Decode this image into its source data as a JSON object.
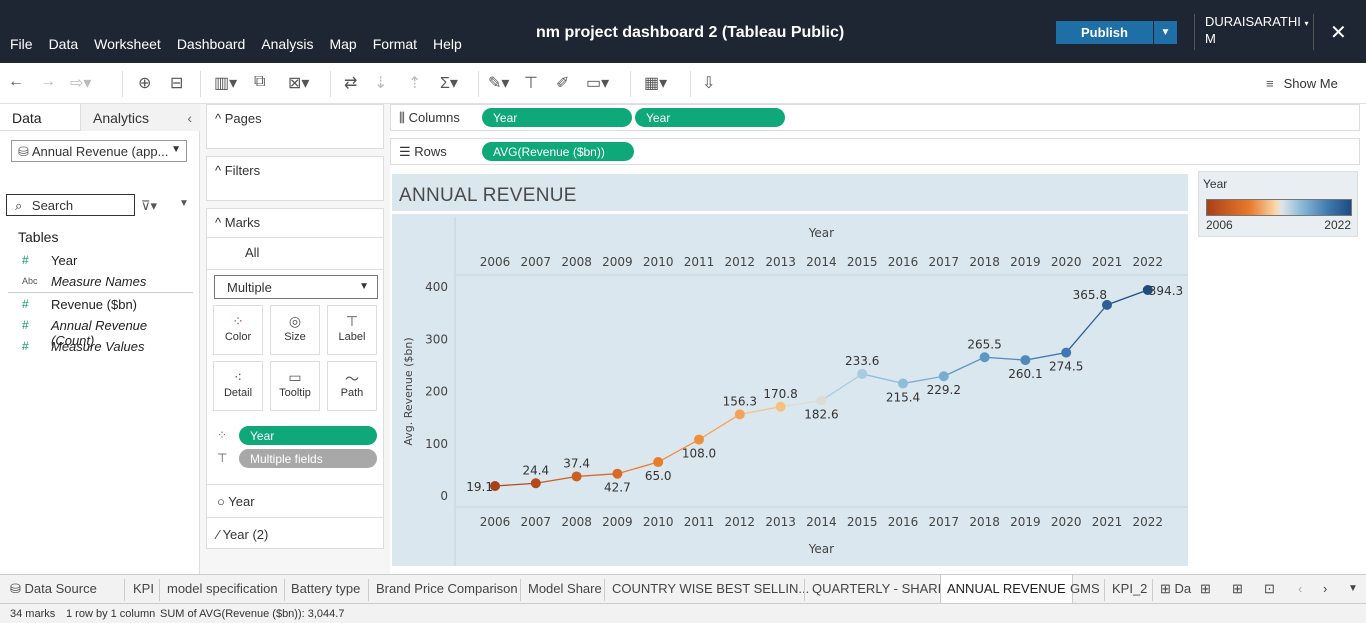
{
  "menu": [
    "File",
    "Data",
    "Worksheet",
    "Dashboard",
    "Analysis",
    "Map",
    "Format",
    "Help"
  ],
  "app_title": "nm project dashboard 2 (Tableau Public)",
  "publish_label": "Publish",
  "user_name_line1": "DURAISARATHI",
  "user_name_line2": "M",
  "show_me": "Show Me",
  "data_pane": {
    "tab_data": "Data",
    "tab_analytics": "Analytics",
    "data_source": "Annual Revenue (app...",
    "search_placeholder": "Search",
    "tables_header": "Tables",
    "fields": [
      {
        "icon": "#",
        "name": "Year",
        "italic": false
      },
      {
        "icon": "Abc",
        "name": "Measure Names",
        "italic": true
      },
      {
        "icon": "#",
        "name": "Revenue ($bn)",
        "italic": false
      },
      {
        "icon": "#",
        "name": "Annual Revenue (Count)",
        "italic": true
      },
      {
        "icon": "#",
        "name": "Measure Values",
        "italic": true
      }
    ]
  },
  "shelves": {
    "pages": "Pages",
    "filters": "Filters",
    "marks": "Marks",
    "marks_all": "All",
    "mark_type": "Multiple",
    "mark_buttons": [
      "Color",
      "Size",
      "Label",
      "Detail",
      "Tooltip",
      "Path"
    ],
    "marks_pills": [
      "Year",
      "Multiple fields"
    ],
    "marks_sub_cards": [
      "Year",
      "Year (2)"
    ],
    "columns_label": "Columns",
    "rows_label": "Rows",
    "columns_pills": [
      "Year",
      "Year"
    ],
    "rows_pills": [
      "AVG(Revenue ($bn))"
    ]
  },
  "legend": {
    "title": "Year",
    "min": "2006",
    "max": "2022"
  },
  "sheet_tabs": {
    "data_source": "Data Source",
    "tabs": [
      "KPI",
      "model specification",
      "Battery type",
      "Brand Price Comparison",
      "Model Share",
      "COUNTRY WISE BEST SELLIN...",
      "QUARTERLY - SHARE",
      "ANNUAL REVENUE",
      "GMS",
      "KPI_2",
      "Da"
    ],
    "active": "ANNUAL REVENUE"
  },
  "status": {
    "marks": "34 marks",
    "rows_cols": "1 row by 1 column",
    "sum": "SUM of AVG(Revenue ($bn)): 3,044.7"
  },
  "chart_data": {
    "type": "line",
    "title": "ANNUAL REVENUE",
    "xlabel": "Year",
    "ylabel": "Avg. Revenue ($bn)",
    "ylim": [
      0,
      400
    ],
    "yticks": [
      0,
      100,
      200,
      300,
      400
    ],
    "categories": [
      "2006",
      "2007",
      "2008",
      "2009",
      "2010",
      "2011",
      "2012",
      "2013",
      "2014",
      "2015",
      "2016",
      "2017",
      "2018",
      "2019",
      "2020",
      "2021",
      "2022"
    ],
    "values": [
      19.1,
      24.4,
      37.4,
      42.7,
      65.0,
      108.0,
      156.3,
      170.8,
      182.6,
      233.6,
      215.4,
      229.2,
      265.5,
      260.1,
      274.5,
      365.8,
      394.3
    ],
    "labels": [
      "19.1",
      "24.4",
      "37.4",
      "42.7",
      "65.0",
      "108.0",
      "156.3",
      "170.8",
      "182.6",
      "233.6",
      "215.4",
      "229.2",
      "265.5",
      "260.1",
      "274.5",
      "365.8",
      "394.3"
    ],
    "colors": [
      "#a8401a",
      "#b5481d",
      "#c95f22",
      "#d96a26",
      "#e97b2c",
      "#ef8f3e",
      "#f4a25a",
      "#f8c080",
      "#dcdcd6",
      "#a9cbe1",
      "#8fbcd9",
      "#79acd0",
      "#5f97c4",
      "#5189bd",
      "#3f78b0",
      "#2d5f93",
      "#1d4c7f"
    ],
    "grid": false,
    "legend": "right"
  }
}
